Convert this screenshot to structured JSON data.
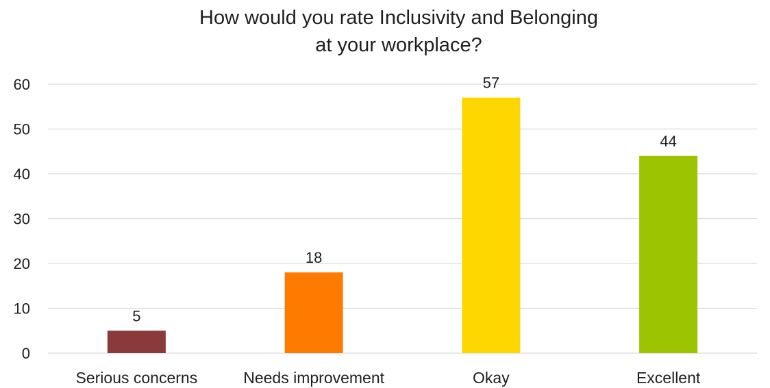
{
  "chart_data": {
    "type": "bar",
    "title_lines": [
      "How would you rate Inclusivity and Belonging",
      "at your workplace?"
    ],
    "categories": [
      "Serious concerns",
      "Needs improvement",
      "Okay",
      "Excellent"
    ],
    "values": [
      5,
      18,
      57,
      44
    ],
    "colors": [
      "#8b3a3a",
      "#ff7b00",
      "#ffd700",
      "#9dc400"
    ],
    "ylim": [
      0,
      60
    ],
    "yticks": [
      0,
      10,
      20,
      30,
      40,
      50,
      60
    ],
    "xlabel": "",
    "ylabel": "",
    "grid": true,
    "legend": "none",
    "data_labels": true
  }
}
